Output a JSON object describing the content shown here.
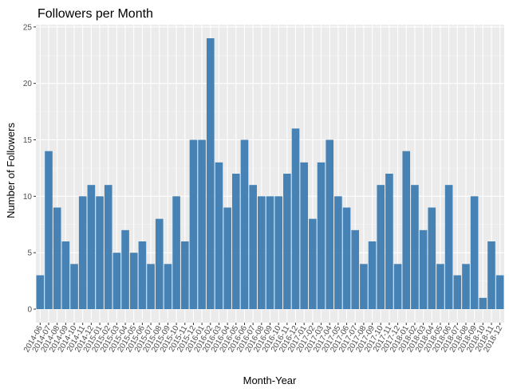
{
  "chart_data": {
    "type": "bar",
    "title": "Followers per Month",
    "xlabel": "Month-Year",
    "ylabel": "Number of Followers",
    "ylim": [
      0,
      25
    ],
    "yticks": [
      0,
      5,
      10,
      15,
      20,
      25
    ],
    "grid": true,
    "legend": "none",
    "bar_color": "#4682B4",
    "panel_color": "#EBEBEB",
    "categories": [
      "2014-06",
      "2014-07",
      "2014-08",
      "2014-09",
      "2014-10",
      "2014-11",
      "2014-12",
      "2015-01",
      "2015-02",
      "2015-03",
      "2015-04",
      "2015-05",
      "2015-06",
      "2015-07",
      "2015-08",
      "2015-09",
      "2015-10",
      "2015-11",
      "2015-12",
      "2016-01",
      "2016-02",
      "2016-03",
      "2016-04",
      "2016-05",
      "2016-06",
      "2016-07",
      "2016-08",
      "2016-09",
      "2016-10",
      "2016-11",
      "2016-12",
      "2017-01",
      "2017-02",
      "2017-03",
      "2017-04",
      "2017-05",
      "2017-06",
      "2017-07",
      "2017-08",
      "2017-09",
      "2017-10",
      "2017-11",
      "2017-12",
      "2018-01",
      "2018-02",
      "2018-03",
      "2018-04",
      "2018-05",
      "2018-06",
      "2018-07",
      "2018-08",
      "2018-09",
      "2018-10",
      "2018-11",
      "2018-12"
    ],
    "values": [
      3,
      14,
      9,
      6,
      4,
      10,
      11,
      10,
      11,
      5,
      7,
      5,
      6,
      4,
      8,
      4,
      10,
      6,
      15,
      15,
      24,
      13,
      9,
      12,
      15,
      11,
      10,
      10,
      10,
      12,
      16,
      13,
      8,
      13,
      15,
      10,
      9,
      7,
      4,
      6,
      11,
      12,
      4,
      14,
      11,
      7,
      9,
      4,
      11,
      3,
      4,
      10,
      1,
      6,
      3
    ]
  }
}
